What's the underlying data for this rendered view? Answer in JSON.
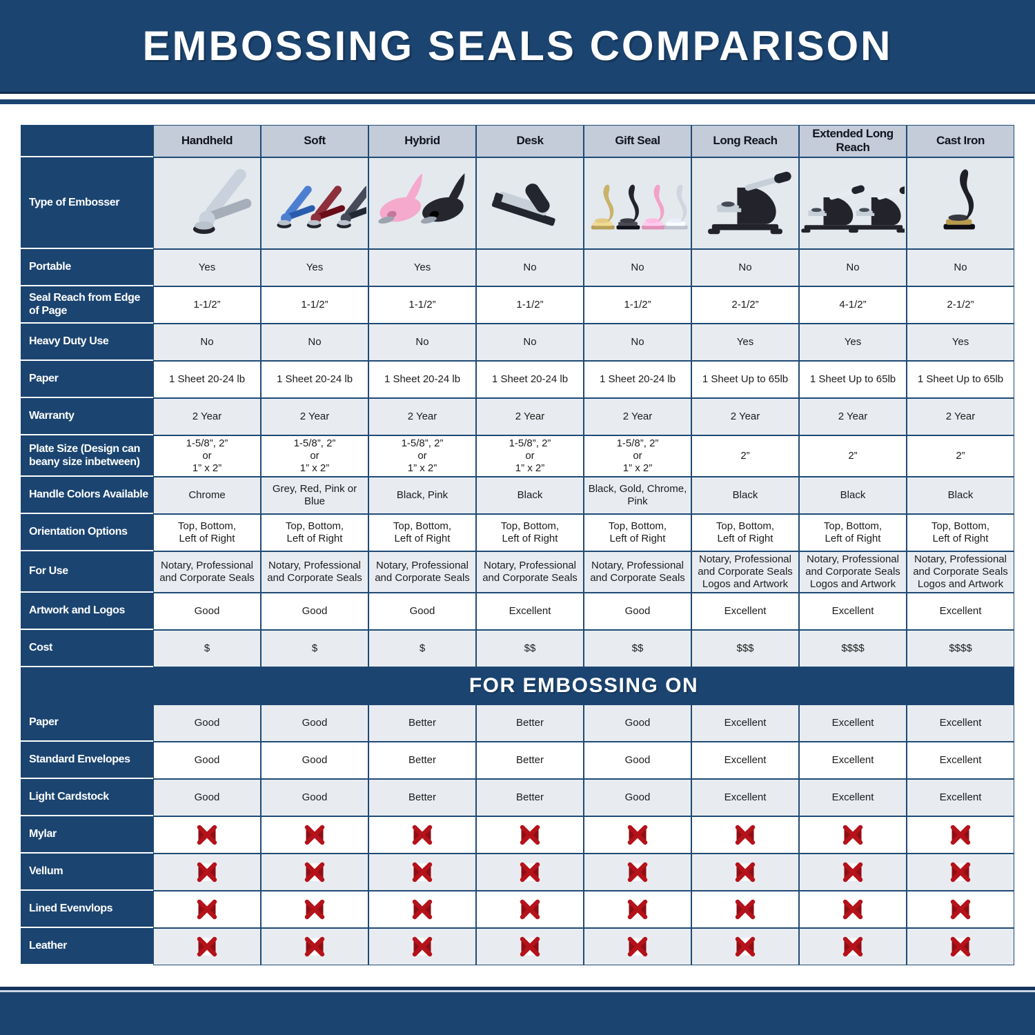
{
  "title": "EMBOSSING SEALS COMPARISON",
  "colors": {
    "navy": "#1b4470",
    "navy_dark_edge": "#0f2d50",
    "navy_rule": "#16335c",
    "grid_border": "#1e4a75",
    "header_row_bg": "#c3ccd8",
    "alt_row_bg": "#e8ecf1",
    "image_row_bg": "#e4e9ee",
    "red_x": "#b5121a",
    "red_x_dark": "#8e0e14"
  },
  "type_row": {
    "label": "Type of Embosser",
    "embossers": [
      {
        "name": "handheld-chrome-embosser-photo",
        "shape": "plier",
        "colors": [
          "#c8d1dc"
        ]
      },
      {
        "name": "soft-embossers-photo",
        "shape": "plier",
        "colors": [
          "#4d7fd1",
          "#8e2f3c",
          "#454b58"
        ]
      },
      {
        "name": "hybrid-embossers-photo",
        "shape": "hybrid",
        "colors": [
          "#f4a9cd",
          "#26262e"
        ]
      },
      {
        "name": "desk-embosser-photo",
        "shape": "desk",
        "colors": [
          "#23252f"
        ]
      },
      {
        "name": "gift-seal-embossers-photo",
        "shape": "upright",
        "colors": [
          "#c9b26a",
          "#23232b",
          "#f2a2c8",
          "#cfd6e0"
        ]
      },
      {
        "name": "long-reach-embosser-photo",
        "shape": "press",
        "colors": [
          "#23232b"
        ],
        "lever": "#c6ced8"
      },
      {
        "name": "extended-long-reach-embossers-photo",
        "shape": "press",
        "colors": [
          "#23232b",
          "#23232b"
        ],
        "lever": "#e8ecf0"
      },
      {
        "name": "cast-iron-embosser-photo",
        "shape": "upright",
        "colors": [
          "#1f1f27"
        ],
        "accent": "#b79a4e"
      }
    ]
  },
  "chart_data": {
    "type": "table",
    "title": "EMBOSSING SEALS COMPARISON",
    "columns": [
      "Handheld",
      "Soft",
      "Hybrid",
      "Desk",
      "Gift Seal",
      "Long Reach",
      "Extended Long Reach",
      "Cast Iron"
    ],
    "sections": [
      {
        "name": "specs",
        "title": "",
        "rows": [
          {
            "label": "Portable",
            "values": [
              "Yes",
              "Yes",
              "Yes",
              "No",
              "No",
              "No",
              "No",
              "No"
            ]
          },
          {
            "label": "Seal Reach from Edge\nof Page",
            "values": [
              "1-1/2”",
              "1-1/2”",
              "1-1/2”",
              "1-1/2”",
              "1-1/2”",
              "2-1/2”",
              "4-1/2”",
              "2-1/2”"
            ]
          },
          {
            "label": "Heavy Duty Use",
            "values": [
              "No",
              "No",
              "No",
              "No",
              "No",
              "Yes",
              "Yes",
              "Yes"
            ]
          },
          {
            "label": "Paper",
            "values": [
              "1 Sheet 20-24 lb",
              "1 Sheet 20-24 lb",
              "1 Sheet 20-24 lb",
              "1 Sheet 20-24 lb",
              "1 Sheet 20-24 lb",
              "1 Sheet Up to 65lb",
              "1 Sheet Up to 65lb",
              "1 Sheet Up to 65lb"
            ]
          },
          {
            "label": "Warranty",
            "values": [
              "2 Year",
              "2 Year",
              "2 Year",
              "2 Year",
              "2 Year",
              "2 Year",
              "2 Year",
              "2 Year"
            ]
          },
          {
            "label": "Plate Size (Design can\nbeany size inbetween)",
            "values": [
              "1-5/8”, 2”\nor\n1” x 2”",
              "1-5/8”, 2”\nor\n1” x 2”",
              "1-5/8”, 2”\nor\n1” x 2”",
              "1-5/8”, 2”\nor\n1” x 2”",
              "1-5/8”, 2”\nor\n1” x 2”",
              "2”",
              "2”",
              "2”"
            ]
          },
          {
            "label": "Handle Colors Available",
            "values": [
              "Chrome",
              "Grey, Red, Pink or Blue",
              "Black, Pink",
              "Black",
              "Black, Gold, Chrome, Pink",
              "Black",
              "Black",
              "Black"
            ]
          },
          {
            "label": "Orientation Options",
            "values": [
              "Top, Bottom,\nLeft of Right",
              "Top, Bottom,\nLeft of Right",
              "Top, Bottom,\nLeft of Right",
              "Top, Bottom,\nLeft of Right",
              "Top, Bottom,\nLeft of Right",
              "Top, Bottom,\nLeft of Right",
              "Top, Bottom,\nLeft of Right",
              "Top, Bottom,\nLeft of Right"
            ]
          },
          {
            "label": "For Use",
            "values": [
              "Notary, Professional\nand Corporate Seals",
              "Notary, Professional\nand Corporate Seals",
              "Notary, Professional\nand Corporate Seals",
              "Notary, Professional\nand Corporate Seals",
              "Notary, Professional\nand Corporate Seals",
              "Notary, Professional\nand Corporate Seals\nLogos and Artwork",
              "Notary, Professional\nand Corporate Seals\nLogos and Artwork",
              "Notary, Professional\nand Corporate Seals\nLogos and Artwork"
            ]
          },
          {
            "label": "Artwork and Logos",
            "values": [
              "Good",
              "Good",
              "Good",
              "Excellent",
              "Good",
              "Excellent",
              "Excellent",
              "Excellent"
            ]
          },
          {
            "label": "Cost",
            "values": [
              "$",
              "$",
              "$",
              "$$",
              "$$",
              "$$$",
              "$$$$",
              "$$$$"
            ]
          }
        ]
      },
      {
        "name": "for-embossing-on",
        "title": "FOR EMBOSSING ON",
        "rows": [
          {
            "label": "Paper",
            "values": [
              "Good",
              "Good",
              "Better",
              "Better",
              "Good",
              "Excellent",
              "Excellent",
              "Excellent"
            ]
          },
          {
            "label": "Standard Envelopes",
            "values": [
              "Good",
              "Good",
              "Better",
              "Better",
              "Good",
              "Excellent",
              "Excellent",
              "Excellent"
            ]
          },
          {
            "label": "Light Cardstock",
            "values": [
              "Good",
              "Good",
              "Better",
              "Better",
              "Good",
              "Excellent",
              "Excellent",
              "Excellent"
            ]
          },
          {
            "label": "Mylar",
            "values": [
              "red-x-icon",
              "red-x-icon",
              "red-x-icon",
              "red-x-icon",
              "red-x-icon",
              "red-x-icon",
              "red-x-icon",
              "red-x-icon"
            ]
          },
          {
            "label": "Vellum",
            "values": [
              "red-x-icon",
              "red-x-icon",
              "red-x-icon",
              "red-x-icon",
              "red-x-icon",
              "red-x-icon",
              "red-x-icon",
              "red-x-icon"
            ]
          },
          {
            "label": "Lined Evenvlops",
            "values": [
              "red-x-icon",
              "red-x-icon",
              "red-x-icon",
              "red-x-icon",
              "red-x-icon",
              "red-x-icon",
              "red-x-icon",
              "red-x-icon"
            ]
          },
          {
            "label": "Leather",
            "values": [
              "red-x-icon",
              "red-x-icon",
              "red-x-icon",
              "red-x-icon",
              "red-x-icon",
              "red-x-icon",
              "red-x-icon",
              "red-x-icon"
            ]
          }
        ]
      }
    ]
  }
}
